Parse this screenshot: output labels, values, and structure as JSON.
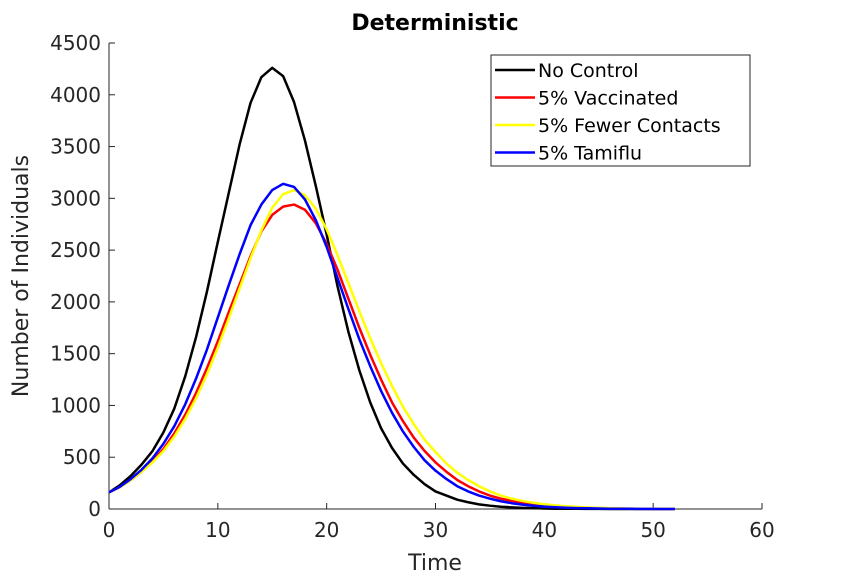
{
  "chart_data": {
    "type": "line",
    "title": "Deterministic",
    "xlabel": "Time",
    "ylabel": "Number of Individuals",
    "xlim": [
      0,
      60
    ],
    "ylim": [
      0,
      4500
    ],
    "xticks": [
      0,
      10,
      20,
      30,
      40,
      50,
      60
    ],
    "yticks": [
      0,
      500,
      1000,
      1500,
      2000,
      2500,
      3000,
      3500,
      4000,
      4500
    ],
    "grid": false,
    "legend_position": "top-right",
    "x": [
      0,
      1,
      2,
      3,
      4,
      5,
      6,
      7,
      8,
      9,
      10,
      11,
      12,
      13,
      14,
      15,
      16,
      17,
      18,
      19,
      20,
      21,
      22,
      23,
      24,
      25,
      26,
      27,
      28,
      29,
      30,
      31,
      32,
      33,
      34,
      35,
      36,
      37,
      38,
      39,
      40,
      41,
      42,
      43,
      44,
      45,
      46,
      47,
      48,
      49,
      50,
      51,
      52
    ],
    "series": [
      {
        "name": "No Control",
        "color": "#000000",
        "values": [
          160,
          230,
          320,
          430,
          560,
          740,
          970,
          1280,
          1660,
          2100,
          2580,
          3050,
          3520,
          3920,
          4170,
          4260,
          4180,
          3930,
          3560,
          3120,
          2650,
          2150,
          1710,
          1340,
          1030,
          780,
          590,
          440,
          330,
          240,
          170,
          130,
          90,
          65,
          45,
          32,
          22,
          16,
          11,
          8,
          5,
          3,
          2,
          2,
          1,
          1,
          0,
          0,
          0,
          0,
          0,
          0,
          0
        ]
      },
      {
        "name": "5% Vaccinated",
        "color": "#ff0000",
        "values": [
          160,
          210,
          280,
          360,
          460,
          580,
          730,
          910,
          1120,
          1360,
          1620,
          1900,
          2170,
          2440,
          2680,
          2840,
          2920,
          2940,
          2890,
          2760,
          2560,
          2310,
          2030,
          1750,
          1490,
          1250,
          1030,
          850,
          690,
          560,
          450,
          360,
          280,
          220,
          170,
          130,
          100,
          78,
          60,
          45,
          35,
          26,
          20,
          15,
          11,
          8,
          6,
          4,
          3,
          2,
          1,
          1,
          0
        ]
      },
      {
        "name": "5% Fewer Contacts",
        "color": "#ffff00",
        "values": [
          160,
          210,
          280,
          360,
          450,
          560,
          700,
          870,
          1070,
          1300,
          1560,
          1840,
          2130,
          2420,
          2690,
          2910,
          3040,
          3080,
          3030,
          2900,
          2700,
          2450,
          2180,
          1910,
          1650,
          1410,
          1190,
          990,
          820,
          670,
          550,
          440,
          350,
          280,
          220,
          170,
          130,
          100,
          78,
          60,
          46,
          35,
          26,
          20,
          15,
          11,
          8,
          6,
          4,
          3,
          2,
          1,
          0
        ]
      },
      {
        "name": "5% Tamiflu",
        "color": "#0000ff",
        "values": [
          160,
          215,
          290,
          380,
          490,
          630,
          800,
          1010,
          1260,
          1540,
          1850,
          2160,
          2460,
          2740,
          2940,
          3080,
          3140,
          3110,
          2990,
          2790,
          2530,
          2230,
          1930,
          1640,
          1380,
          1140,
          930,
          750,
          600,
          470,
          370,
          290,
          220,
          170,
          130,
          100,
          75,
          56,
          42,
          31,
          23,
          17,
          12,
          9,
          7,
          5,
          3,
          2,
          2,
          1,
          1,
          0,
          0
        ]
      }
    ]
  }
}
